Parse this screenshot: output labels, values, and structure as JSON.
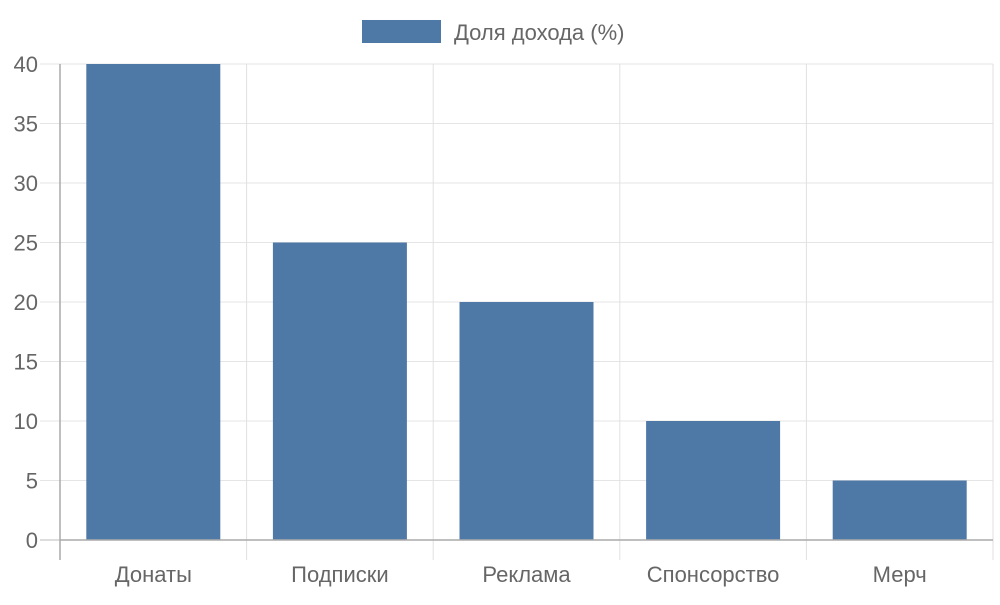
{
  "chart_data": {
    "type": "bar",
    "categories": [
      "Донаты",
      "Подписки",
      "Реклама",
      "Спонсорство",
      "Мерч"
    ],
    "series": [
      {
        "name": "Доля дохода (%)",
        "values": [
          40,
          25,
          20,
          10,
          5
        ],
        "color": "#4e79a7"
      }
    ],
    "ylim": [
      0,
      40
    ],
    "yticks": [
      0,
      5,
      10,
      15,
      20,
      25,
      30,
      35,
      40
    ],
    "grid": true,
    "legend_position": "top",
    "xlabel": "",
    "ylabel": ""
  }
}
